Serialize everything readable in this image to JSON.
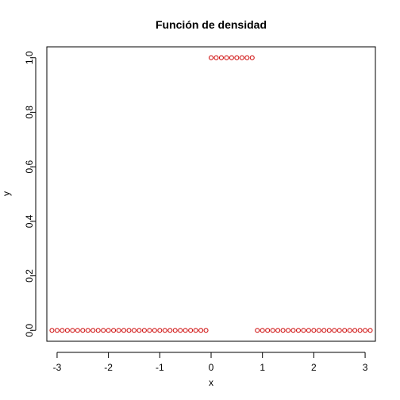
{
  "chart_data": {
    "type": "scatter",
    "title": "Función de densidad",
    "xlabel": "x",
    "ylabel": "y",
    "xlim": [
      -3.2,
      3.2
    ],
    "ylim": [
      -0.04,
      1.04
    ],
    "x_ticks": [
      -3,
      -2,
      -1,
      0,
      1,
      2,
      3
    ],
    "y_ticks": [
      0.0,
      0.2,
      0.4,
      0.6,
      0.8,
      1.0
    ],
    "y_tick_labels": [
      "0.0",
      "0.2",
      "0.4",
      "0.6",
      "0.8",
      "1.0"
    ],
    "grid": false,
    "point_color": "#cc0000",
    "series": [
      {
        "x": [
          -3.1,
          -3.0,
          -2.9,
          -2.8,
          -2.7,
          -2.6,
          -2.5,
          -2.4,
          -2.3,
          -2.2,
          -2.1,
          -2.0,
          -1.9,
          -1.8,
          -1.7,
          -1.6,
          -1.5,
          -1.4,
          -1.3,
          -1.2,
          -1.1,
          -1.0,
          -0.9,
          -0.8,
          -0.7,
          -0.6,
          -0.5,
          -0.4,
          -0.3,
          -0.2,
          -0.1,
          0.0,
          0.1,
          0.2,
          0.3,
          0.4,
          0.5,
          0.6,
          0.7,
          0.8,
          0.9,
          1.0,
          1.1,
          1.2,
          1.3,
          1.4,
          1.5,
          1.6,
          1.7,
          1.8,
          1.9,
          2.0,
          2.1,
          2.2,
          2.3,
          2.4,
          2.5,
          2.6,
          2.7,
          2.8,
          2.9,
          3.0,
          3.1
        ],
        "y": [
          0,
          0,
          0,
          0,
          0,
          0,
          0,
          0,
          0,
          0,
          0,
          0,
          0,
          0,
          0,
          0,
          0,
          0,
          0,
          0,
          0,
          0,
          0,
          0,
          0,
          0,
          0,
          0,
          0,
          0,
          0,
          1,
          1,
          1,
          1,
          1,
          1,
          1,
          1,
          1,
          0,
          0,
          0,
          0,
          0,
          0,
          0,
          0,
          0,
          0,
          0,
          0,
          0,
          0,
          0,
          0,
          0,
          0,
          0,
          0,
          0,
          0,
          0
        ]
      }
    ]
  }
}
